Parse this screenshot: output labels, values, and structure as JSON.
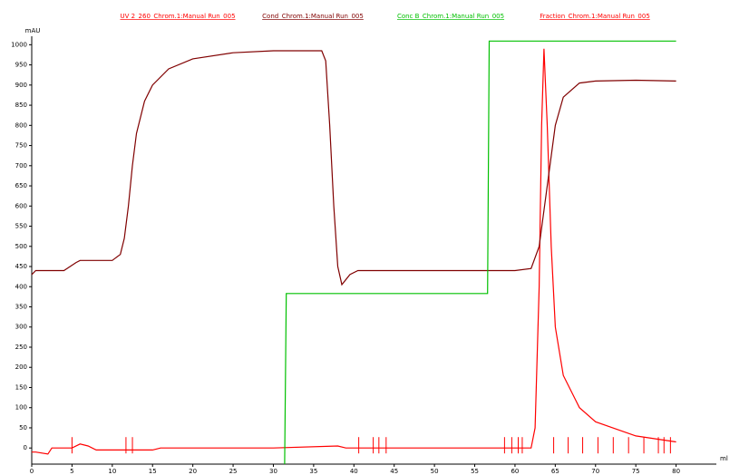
{
  "chart_data": {
    "type": "line",
    "y_label": "mAU",
    "x_label": "ml",
    "xlim": [
      0,
      85
    ],
    "ylim": [
      -40,
      1030
    ],
    "xticks": [
      0,
      5,
      10,
      15,
      20,
      25,
      30,
      35,
      40,
      45,
      50,
      55,
      60,
      65,
      70,
      75,
      80
    ],
    "yticks": [
      0,
      50,
      100,
      150,
      200,
      250,
      300,
      350,
      400,
      450,
      500,
      550,
      600,
      650,
      700,
      750,
      800,
      850,
      900,
      950,
      1000
    ],
    "series": [
      {
        "name": "UV 2_260_Chrom.1:Manual Run_005",
        "color": "#ff0000",
        "x": [
          0,
          0.5,
          2,
          2.5,
          5,
          6,
          7,
          8,
          15,
          16,
          30,
          38,
          39,
          62,
          62.5,
          63,
          63.3,
          63.6,
          64,
          64.5,
          65,
          66,
          68,
          70,
          75,
          80
        ],
        "values": [
          -10,
          -10,
          -15,
          0,
          0,
          10,
          5,
          -5,
          -5,
          0,
          0,
          5,
          0,
          0,
          50,
          400,
          800,
          990,
          800,
          500,
          300,
          180,
          100,
          65,
          30,
          15
        ]
      },
      {
        "name": "Cond_Chrom.1:Manual Run_005",
        "color": "#800000",
        "x": [
          0,
          0.5,
          4,
          5.5,
          6,
          10,
          11,
          11.5,
          12,
          12.5,
          13,
          14,
          15,
          17,
          20,
          25,
          30,
          36,
          36.5,
          37,
          37.5,
          38,
          38.5,
          39.5,
          40.5,
          50,
          60,
          62,
          63,
          64,
          65,
          66,
          68,
          70,
          75,
          80
        ],
        "values": [
          430,
          440,
          440,
          460,
          465,
          465,
          480,
          520,
          600,
          700,
          780,
          860,
          900,
          940,
          965,
          980,
          985,
          985,
          960,
          800,
          600,
          450,
          405,
          430,
          440,
          440,
          440,
          445,
          500,
          650,
          800,
          870,
          905,
          910,
          912,
          910
        ]
      },
      {
        "name": "Conc B_Chrom.1:Manual Run_005",
        "color": "#00c000",
        "x": [
          31.4,
          31.6,
          56.6,
          56.8,
          80
        ],
        "values": [
          -40,
          383,
          383,
          1009,
          1009
        ]
      },
      {
        "name": "Fraction_Chrom.1:Manual Run_005",
        "color": "#ff0000",
        "x": [
          5,
          11.7,
          12.5,
          40.6,
          42.4,
          43.1,
          44,
          58.7,
          59.6,
          60.4,
          60.9,
          64.8,
          66.6,
          68.4,
          70.3,
          72.2,
          74.1,
          76,
          77.8,
          78.5,
          79.3
        ]
      }
    ]
  }
}
